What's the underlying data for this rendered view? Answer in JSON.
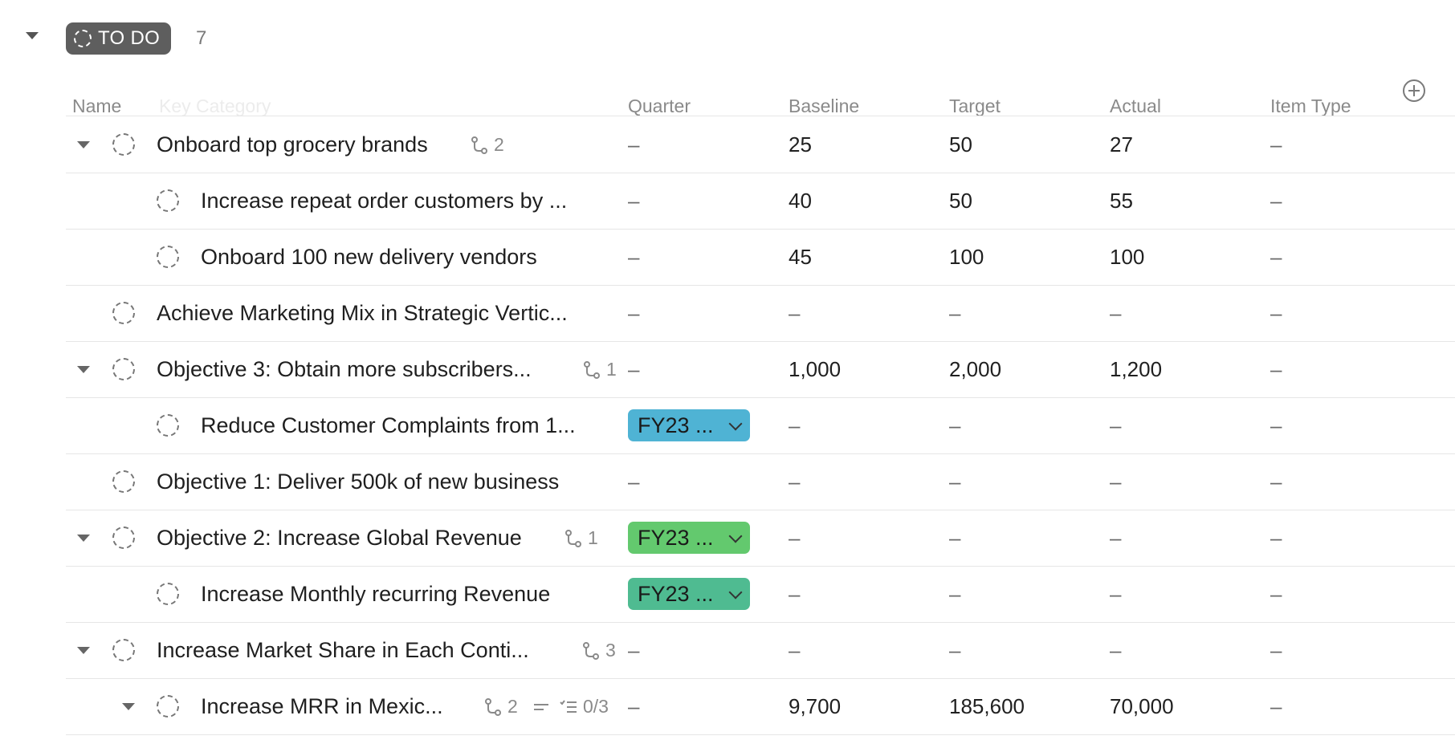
{
  "group": {
    "status_label": "TO DO",
    "count": "7"
  },
  "columns": {
    "name": "Name",
    "ghost": "Key Category",
    "quarter": "Quarter",
    "baseline": "Baseline",
    "target": "Target",
    "actual": "Actual",
    "item_type": "Item Type"
  },
  "rows": [
    {
      "name": "Onboard top grocery brands",
      "subtasks": "2",
      "quarter": "–",
      "baseline": "25",
      "target": "50",
      "actual": "27",
      "item_type": "–"
    },
    {
      "name": "Increase repeat order customers by ...",
      "quarter": "–",
      "baseline": "40",
      "target": "50",
      "actual": "55",
      "item_type": "–"
    },
    {
      "name": "Onboard 100 new delivery vendors",
      "quarter": "–",
      "baseline": "45",
      "target": "100",
      "actual": "100",
      "item_type": "–"
    },
    {
      "name": "Achieve Marketing Mix in Strategic Vertic...",
      "quarter": "–",
      "baseline": "–",
      "target": "–",
      "actual": "–",
      "item_type": "–"
    },
    {
      "name": "Objective 3: Obtain more subscribers...",
      "subtasks": "1",
      "quarter": "–",
      "baseline": "1,000",
      "target": "2,000",
      "actual": "1,200",
      "item_type": "–"
    },
    {
      "name": "Reduce Customer Complaints from 1...",
      "quarter": "FY23 ...",
      "quarter_color": "#4fb3d4",
      "baseline": "–",
      "target": "–",
      "actual": "–",
      "item_type": "–"
    },
    {
      "name": "Objective 1: Deliver 500k of new business",
      "quarter": "–",
      "baseline": "–",
      "target": "–",
      "actual": "–",
      "item_type": "–"
    },
    {
      "name": "Objective 2: Increase Global Revenue",
      "subtasks": "1",
      "quarter": "FY23 ...",
      "quarter_color": "#63c96e",
      "baseline": "–",
      "target": "–",
      "actual": "–",
      "item_type": "–"
    },
    {
      "name": "Increase Monthly recurring Revenue",
      "quarter": "FY23 ...",
      "quarter_color": "#4fbb91",
      "baseline": "–",
      "target": "–",
      "actual": "–",
      "item_type": "–"
    },
    {
      "name": "Increase Market Share in Each Conti...",
      "subtasks": "3",
      "quarter": "–",
      "baseline": "–",
      "target": "–",
      "actual": "–",
      "item_type": "–"
    },
    {
      "name": "Increase MRR in Mexic...",
      "subtasks": "2",
      "checklist": "0/3",
      "quarter": "–",
      "baseline": "9,700",
      "target": "185,600",
      "actual": "70,000",
      "item_type": "–"
    }
  ]
}
